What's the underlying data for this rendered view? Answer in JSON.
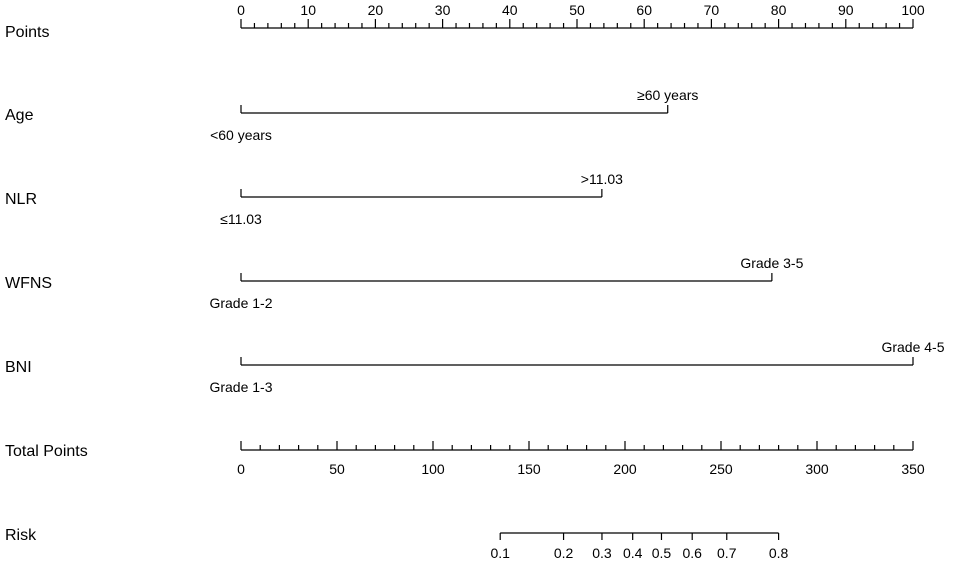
{
  "chart_data": {
    "type": "nomogram",
    "points_axis": {
      "label": "Points",
      "min": 0,
      "max": 100,
      "major_ticks": [
        0,
        10,
        20,
        30,
        40,
        50,
        60,
        70,
        80,
        90,
        100
      ],
      "minor_step": 2
    },
    "predictors": [
      {
        "name": "Age",
        "levels": [
          {
            "label": "<60 years",
            "points": 0
          },
          {
            "label": "≥60 years",
            "points": 63.5
          }
        ]
      },
      {
        "name": "NLR",
        "levels": [
          {
            "label": "≤11.03",
            "points": 0
          },
          {
            "label": ">11.03",
            "points": 53.7
          }
        ]
      },
      {
        "name": "WFNS",
        "levels": [
          {
            "label": "Grade 1-2",
            "points": 0
          },
          {
            "label": "Grade 3-5",
            "points": 79.0
          }
        ]
      },
      {
        "name": "BNI",
        "levels": [
          {
            "label": "Grade 1-3",
            "points": 0
          },
          {
            "label": "Grade 4-5",
            "points": 100
          }
        ]
      }
    ],
    "total_points_axis": {
      "label": "Total Points",
      "min": 0,
      "max": 350,
      "major_ticks": [
        0,
        50,
        100,
        150,
        200,
        250,
        300,
        350
      ],
      "minor_step": 10
    },
    "risk_axis": {
      "label": "Risk",
      "ticks": [
        {
          "label": "0.1",
          "total_points": 135
        },
        {
          "label": "0.2",
          "total_points": 168
        },
        {
          "label": "0.3",
          "total_points": 188
        },
        {
          "label": "0.4",
          "total_points": 204
        },
        {
          "label": "0.5",
          "total_points": 219
        },
        {
          "label": "0.6",
          "total_points": 235
        },
        {
          "label": "0.7",
          "total_points": 253
        },
        {
          "label": "0.8",
          "total_points": 280
        }
      ]
    }
  }
}
